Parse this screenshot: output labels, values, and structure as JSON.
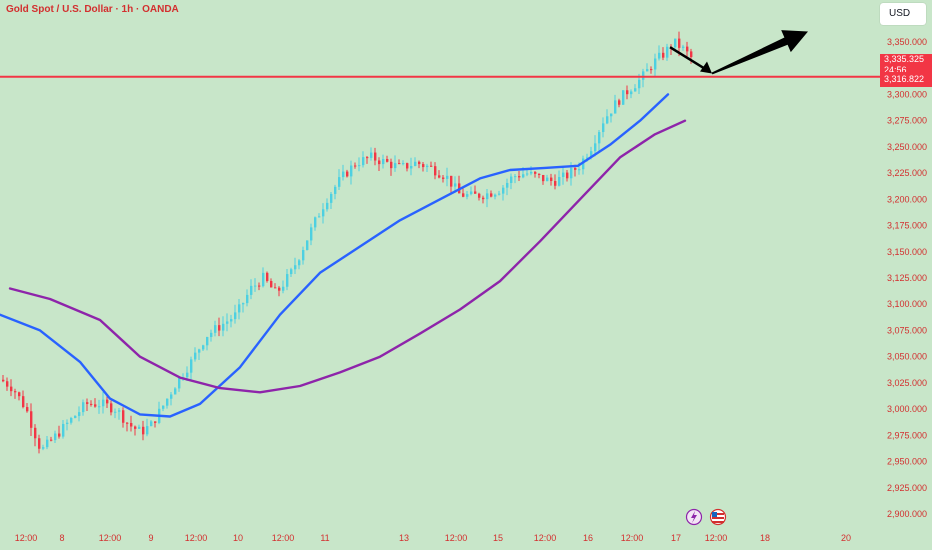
{
  "header": {
    "symbol_title": "Gold Spot / U.S. Dollar · 1h · OANDA",
    "currency_label": "USD"
  },
  "price_badges": {
    "last_price": "3,335.325",
    "countdown": "24:56",
    "line_price": "3,316.822"
  },
  "colors": {
    "background": "#c8e6c9",
    "up_candle": "#4dd0e1",
    "down_candle": "#f23645",
    "ma_fast": "#2962ff",
    "ma_slow": "#8e24aa",
    "axis_text": "#d32f2f",
    "horizontal_line": "#f23645",
    "arrow": "#000000"
  },
  "chart_data": {
    "type": "candlestick",
    "title": "Gold Spot / U.S. Dollar · 1h · OANDA",
    "y_axis_labels": [
      "3,350.000",
      "3,325.000",
      "3,300.000",
      "3,275.000",
      "3,250.000",
      "3,225.000",
      "3,200.000",
      "3,175.000",
      "3,150.000",
      "3,125.000",
      "3,100.000",
      "3,075.000",
      "3,050.000",
      "3,025.000",
      "3,000.000",
      "2,975.000",
      "2,950.000",
      "2,925.000",
      "2,900.000"
    ],
    "y_range": [
      2893,
      3372
    ],
    "x_axis_labels": [
      "12:00",
      "8",
      "12:00",
      "9",
      "12:00",
      "10",
      "12:00",
      "11",
      "13",
      "12:00",
      "15",
      "12:00",
      "16",
      "12:00",
      "17",
      "12:00",
      "18",
      "20"
    ],
    "horizontal_line_price": 3316.822,
    "last_price": 3335.325,
    "candle_path": [
      [
        0,
        3028
      ],
      [
        12,
        3020
      ],
      [
        25,
        3000
      ],
      [
        40,
        2960
      ],
      [
        55,
        2975
      ],
      [
        70,
        2990
      ],
      [
        85,
        3005
      ],
      [
        100,
        3005
      ],
      [
        115,
        3000
      ],
      [
        128,
        2985
      ],
      [
        140,
        2978
      ],
      [
        150,
        2985
      ],
      [
        160,
        3000
      ],
      [
        175,
        3025
      ],
      [
        190,
        3045
      ],
      [
        205,
        3070
      ],
      [
        220,
        3080
      ],
      [
        235,
        3090
      ],
      [
        250,
        3115
      ],
      [
        262,
        3125
      ],
      [
        275,
        3110
      ],
      [
        290,
        3130
      ],
      [
        300,
        3150
      ],
      [
        312,
        3175
      ],
      [
        325,
        3200
      ],
      [
        340,
        3220
      ],
      [
        355,
        3235
      ],
      [
        370,
        3240
      ],
      [
        385,
        3235
      ],
      [
        400,
        3230
      ],
      [
        415,
        3235
      ],
      [
        430,
        3230
      ],
      [
        445,
        3222
      ],
      [
        458,
        3205
      ],
      [
        470,
        3203
      ],
      [
        485,
        3205
      ],
      [
        500,
        3210
      ],
      [
        512,
        3222
      ],
      [
        525,
        3225
      ],
      [
        540,
        3220
      ],
      [
        552,
        3217
      ],
      [
        565,
        3222
      ],
      [
        578,
        3232
      ],
      [
        590,
        3250
      ],
      [
        602,
        3275
      ],
      [
        615,
        3292
      ],
      [
        628,
        3305
      ],
      [
        640,
        3315
      ],
      [
        652,
        3330
      ],
      [
        664,
        3340
      ],
      [
        672,
        3350
      ],
      [
        680,
        3345
      ],
      [
        690,
        3335
      ]
    ],
    "series": [
      {
        "values": [
          [
            0,
            3090
          ],
          [
            40,
            3075
          ],
          [
            80,
            3045
          ],
          [
            110,
            3010
          ],
          [
            140,
            2995
          ],
          [
            170,
            2993
          ],
          [
            200,
            3005
          ],
          [
            240,
            3040
          ],
          [
            280,
            3090
          ],
          [
            320,
            3130
          ],
          [
            360,
            3155
          ],
          [
            400,
            3180
          ],
          [
            440,
            3200
          ],
          [
            480,
            3220
          ],
          [
            510,
            3228
          ],
          [
            545,
            3230
          ],
          [
            578,
            3232
          ],
          [
            610,
            3252
          ],
          [
            640,
            3275
          ],
          [
            668,
            3300
          ]
        ]
      },
      {
        "values": [
          [
            10,
            3115
          ],
          [
            50,
            3105
          ],
          [
            100,
            3085
          ],
          [
            140,
            3050
          ],
          [
            180,
            3030
          ],
          [
            220,
            3020
          ],
          [
            260,
            3016
          ],
          [
            300,
            3022
          ],
          [
            340,
            3035
          ],
          [
            380,
            3050
          ],
          [
            420,
            3072
          ],
          [
            460,
            3095
          ],
          [
            500,
            3122
          ],
          [
            540,
            3160
          ],
          [
            580,
            3200
          ],
          [
            620,
            3240
          ],
          [
            655,
            3262
          ],
          [
            685,
            3275
          ]
        ]
      }
    ],
    "projection_arrows": [
      {
        "from": [
          670,
          3345
        ],
        "to": [
          712,
          3320
        ]
      },
      {
        "from": [
          712,
          3320
        ],
        "to": [
          808,
          3360
        ]
      }
    ],
    "x_unit": "bar offset",
    "grid": false
  }
}
